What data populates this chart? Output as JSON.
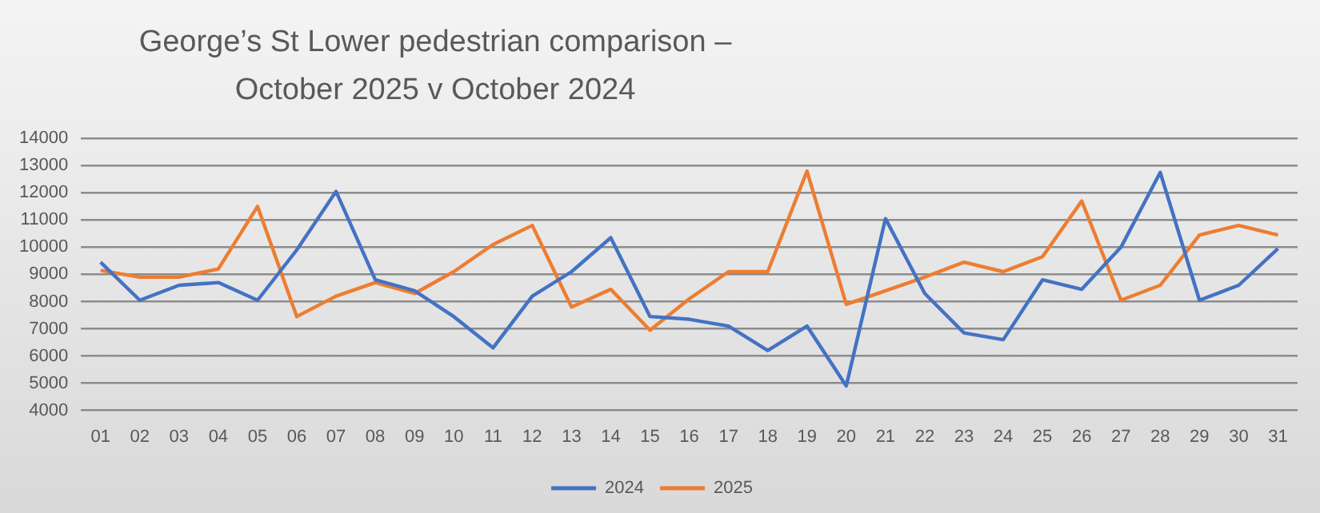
{
  "chart_data": {
    "type": "line",
    "title": "George’s St Lower pedestrian comparison – October 2025 v October 2024",
    "categories": [
      "01",
      "02",
      "03",
      "04",
      "05",
      "06",
      "07",
      "08",
      "09",
      "10",
      "11",
      "12",
      "13",
      "14",
      "15",
      "16",
      "17",
      "18",
      "19",
      "20",
      "21",
      "22",
      "23",
      "24",
      "25",
      "26",
      "27",
      "28",
      "29",
      "30",
      "31"
    ],
    "series": [
      {
        "name": "2024",
        "color": "#4472c4",
        "values": [
          9450,
          8050,
          8600,
          8700,
          8050,
          9900,
          12050,
          8800,
          8400,
          7450,
          6300,
          8200,
          9100,
          10350,
          7450,
          7350,
          7100,
          6200,
          7100,
          4900,
          11050,
          8300,
          6850,
          6600,
          8800,
          8450,
          10000,
          12750,
          8050,
          8600,
          9950
        ]
      },
      {
        "name": "2025",
        "color": "#ed7d31",
        "values": [
          9150,
          8900,
          8900,
          9200,
          11500,
          7450,
          8200,
          8700,
          8300,
          9100,
          10100,
          10800,
          7800,
          8450,
          6950,
          8100,
          9100,
          9100,
          12800,
          7900,
          8400,
          8900,
          9450,
          9100,
          9650,
          11700,
          8050,
          8600,
          10450,
          10800,
          10450
        ]
      }
    ],
    "ylim": [
      4000,
      14000
    ],
    "yticks": [
      4000,
      5000,
      6000,
      7000,
      8000,
      9000,
      10000,
      11000,
      12000,
      13000,
      14000
    ],
    "grid": "y",
    "legend": "bottom",
    "marker": "none",
    "line_style": "solid"
  }
}
